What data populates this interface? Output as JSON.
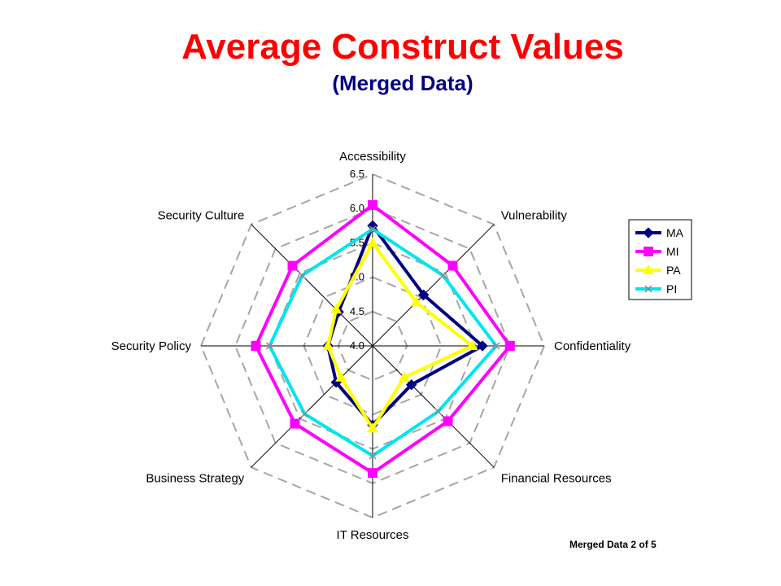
{
  "slide": {
    "title": "Average Construct Values",
    "subtitle": "(Merged Data)",
    "footer": "Merged Data 2 of 5"
  },
  "chart_data": {
    "type": "radar",
    "axes": [
      "Accessibility",
      "Vulnerability",
      "Confidentiality",
      "Financial Resources",
      "IT Resources",
      "Business Strategy",
      "Security Policy",
      "Security Culture"
    ],
    "ticks": [
      "4.0",
      "4.5",
      "5.0",
      "5.5",
      "6.0",
      "6.5"
    ],
    "rlim": [
      4.0,
      6.5
    ],
    "grid": "dashed octagons",
    "legend_position": "right",
    "series": [
      {
        "name": "MA",
        "color": "#000080",
        "marker": "diamond",
        "values": [
          5.75,
          5.05,
          5.6,
          4.8,
          5.15,
          4.75,
          4.65,
          4.7
        ]
      },
      {
        "name": "MI",
        "color": "#ff00ff",
        "marker": "square",
        "values": [
          6.05,
          5.65,
          6.0,
          5.55,
          5.85,
          5.6,
          5.7,
          5.65
        ]
      },
      {
        "name": "PA",
        "color": "#ffff00",
        "marker": "triangle",
        "values": [
          5.5,
          4.9,
          5.45,
          4.65,
          5.2,
          4.65,
          4.65,
          4.75
        ]
      },
      {
        "name": "PI",
        "color": "#00e5ee",
        "marker": "x",
        "values": [
          5.7,
          5.45,
          5.8,
          5.35,
          5.6,
          5.4,
          5.5,
          5.45
        ]
      }
    ]
  }
}
